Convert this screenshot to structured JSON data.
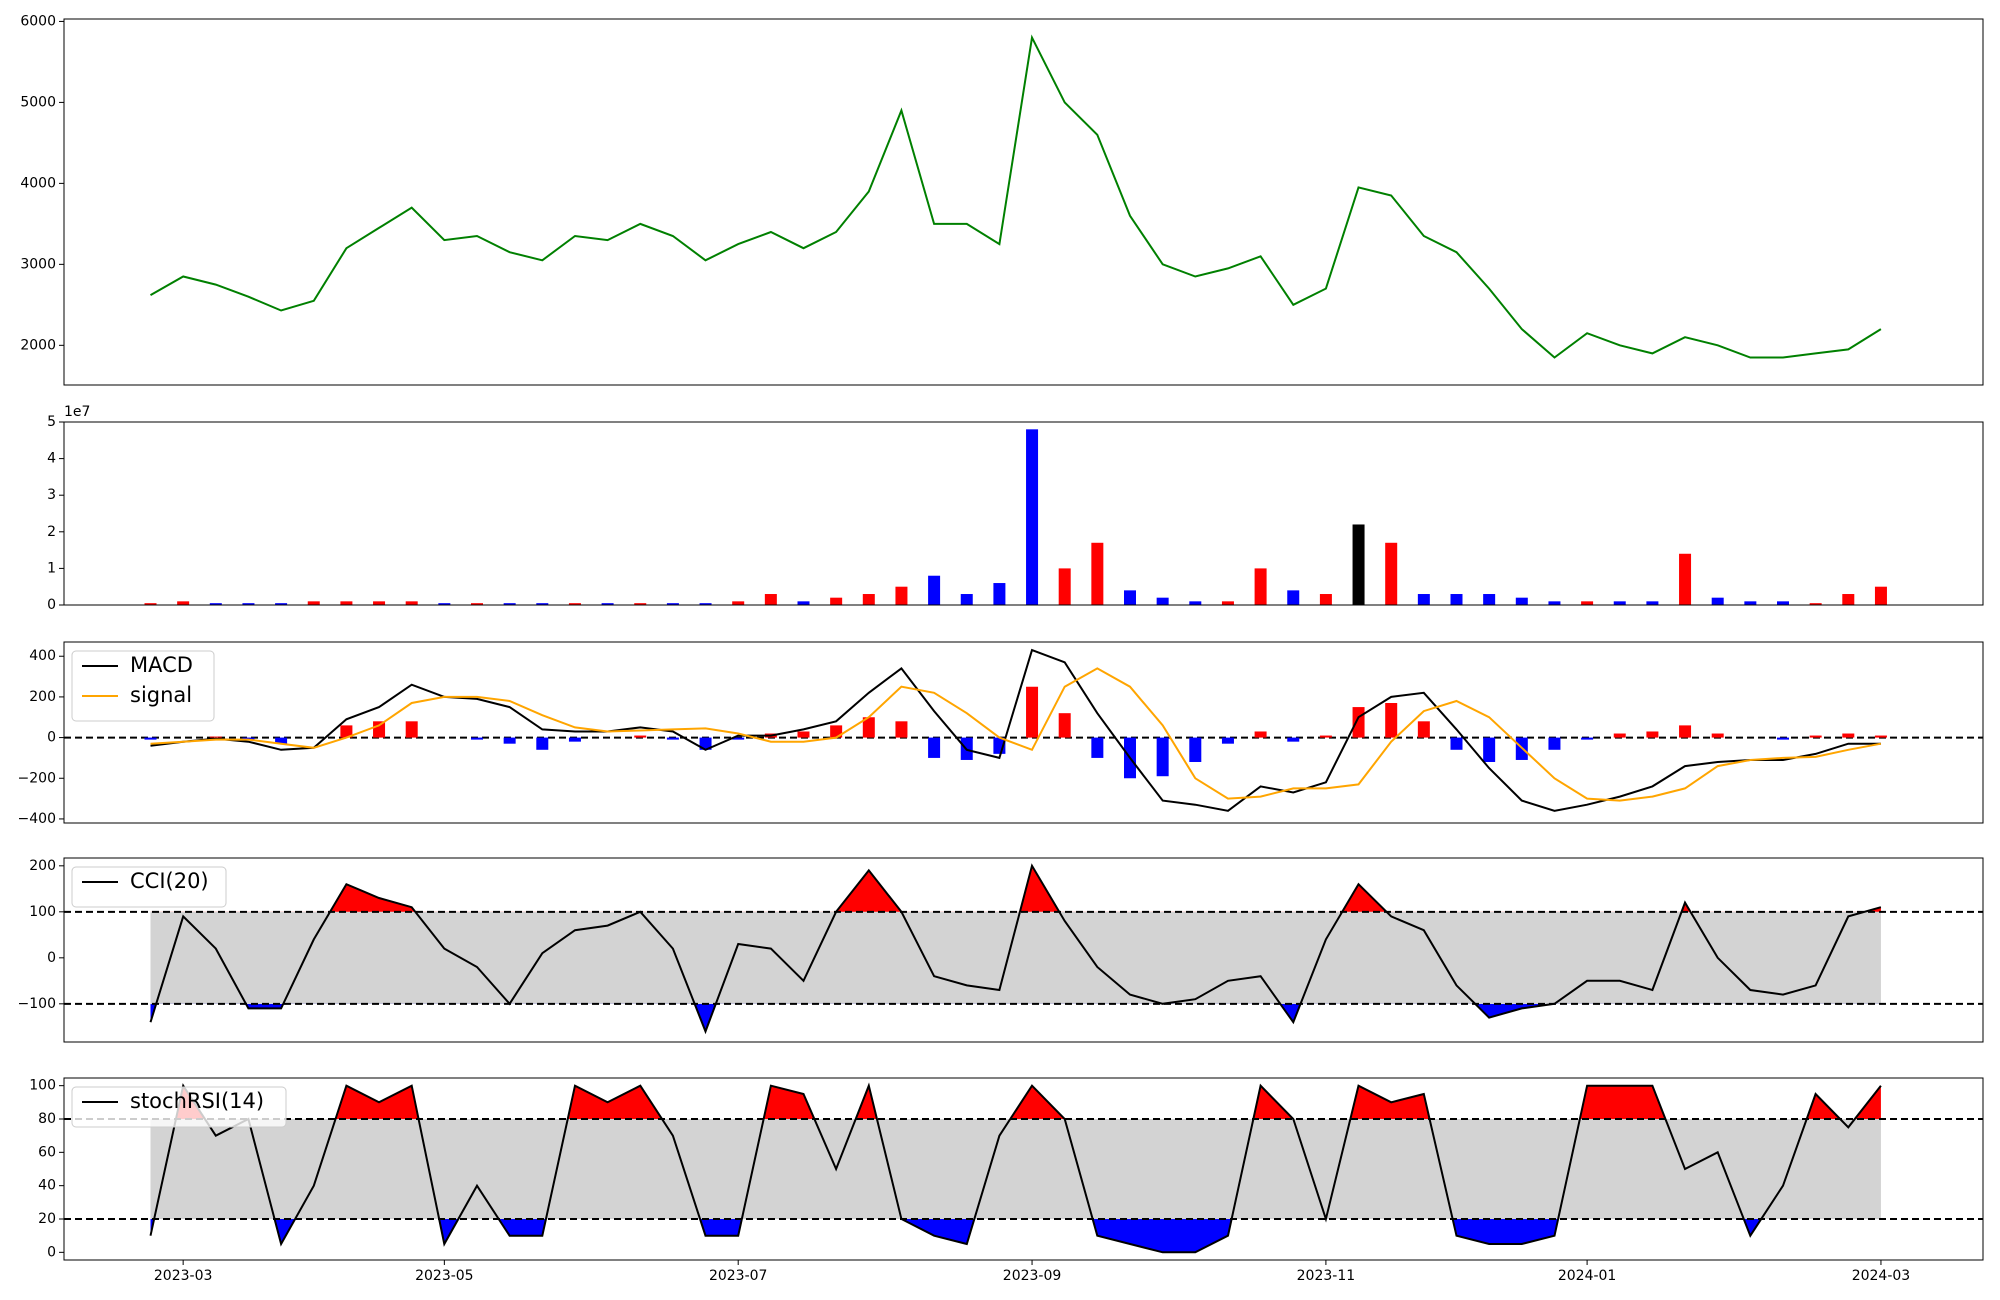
{
  "chart_data": [
    {
      "type": "line",
      "color": "green",
      "values": [
        2620,
        2850,
        2750,
        2600,
        2430,
        2550,
        3200,
        3450,
        3700,
        3300,
        3350,
        3150,
        3050,
        3350,
        3300,
        3500,
        3350,
        3050,
        3250,
        3400,
        3200,
        3400,
        3900,
        4900,
        3500,
        3500,
        3250,
        5800,
        5000,
        4600,
        3600,
        3000,
        2850,
        2950,
        3100,
        2500,
        2700,
        3950,
        3850,
        3350,
        3150,
        2700,
        2200,
        1850,
        2150,
        2000,
        1900,
        2100,
        2000,
        1850,
        1850,
        1900,
        1950,
        2200
      ],
      "ylim": [
        1510,
        6030
      ],
      "yticks": [
        2000,
        3000,
        4000,
        5000,
        6000
      ]
    },
    {
      "type": "bar",
      "offset_label": "1e7",
      "values": [
        0.05,
        0.1,
        0.05,
        0.05,
        0.05,
        0.1,
        0.1,
        0.1,
        0.1,
        0.05,
        0.05,
        0.05,
        0.05,
        0.05,
        0.05,
        0.05,
        0.05,
        0.05,
        0.1,
        0.3,
        0.1,
        0.2,
        0.3,
        0.5,
        0.8,
        0.3,
        0.6,
        4.8,
        1.0,
        1.7,
        0.4,
        0.2,
        0.1,
        0.1,
        1.0,
        0.4,
        0.3,
        2.2,
        1.7,
        0.3,
        0.3,
        0.3,
        0.2,
        0.1,
        0.1,
        0.1,
        0.1,
        1.4,
        0.2,
        0.1,
        0.1,
        0.05,
        0.3,
        0.5
      ],
      "colors": [
        "red",
        "red",
        "blue",
        "blue",
        "blue",
        "red",
        "red",
        "red",
        "red",
        "blue",
        "red",
        "blue",
        "blue",
        "red",
        "blue",
        "red",
        "blue",
        "blue",
        "red",
        "red",
        "blue",
        "red",
        "red",
        "red",
        "blue",
        "blue",
        "blue",
        "blue",
        "red",
        "red",
        "blue",
        "blue",
        "blue",
        "red",
        "red",
        "blue",
        "red",
        "black",
        "red",
        "blue",
        "blue",
        "blue",
        "blue",
        "blue",
        "red",
        "blue",
        "blue",
        "red",
        "blue",
        "blue",
        "blue",
        "red",
        "red",
        "red"
      ],
      "ylim": [
        0,
        5
      ],
      "yticks": [
        0,
        1,
        2,
        3,
        4,
        5
      ]
    },
    {
      "type": "macd",
      "legend": "upper left",
      "series": [
        {
          "name": "MACD",
          "color": "black",
          "values": [
            -40,
            -20,
            -5,
            -20,
            -60,
            -50,
            90,
            150,
            260,
            200,
            190,
            150,
            40,
            30,
            30,
            50,
            30,
            -60,
            10,
            10,
            40,
            80,
            220,
            340,
            130,
            -60,
            -100,
            430,
            370,
            120,
            -100,
            -310,
            -330,
            -360,
            -240,
            -270,
            -220,
            100,
            200,
            220,
            40,
            -150,
            -310,
            -360,
            -330,
            -290,
            -240,
            -140,
            -120,
            -110,
            -110,
            -80,
            -30,
            -30
          ]
        },
        {
          "name": "signal",
          "color": "orange",
          "values": [
            -30,
            -20,
            -10,
            -10,
            -30,
            -50,
            0,
            60,
            170,
            200,
            200,
            180,
            110,
            50,
            30,
            35,
            40,
            45,
            20,
            -20,
            -20,
            0,
            100,
            250,
            220,
            120,
            0,
            -60,
            250,
            340,
            250,
            60,
            -200,
            -300,
            -290,
            -250,
            -250,
            -230,
            -20,
            130,
            180,
            100,
            -50,
            -200,
            -300,
            -310,
            -290,
            -250,
            -140,
            -110,
            -100,
            -95,
            -60,
            -30
          ]
        }
      ],
      "histogram": {
        "up_color": "red",
        "down_color": "blue",
        "values": [
          -10,
          0,
          5,
          -10,
          -30,
          0,
          60,
          80,
          80,
          0,
          -10,
          -30,
          -60,
          -20,
          0,
          10,
          -10,
          -60,
          -10,
          20,
          30,
          60,
          100,
          80,
          -100,
          -110,
          -80,
          250,
          120,
          -100,
          -200,
          -190,
          -120,
          -30,
          30,
          -20,
          10,
          150,
          170,
          80,
          -60,
          -120,
          -110,
          -60,
          -10,
          20,
          30,
          60,
          20,
          0,
          -10,
          10,
          20,
          10
        ]
      },
      "hlines": [
        0
      ],
      "ylim": [
        -420,
        470
      ],
      "yticks": [
        {
          "value": -400,
          "label": "−400"
        },
        {
          "value": -200,
          "label": "−200"
        },
        0,
        200,
        400
      ]
    },
    {
      "type": "oscillator",
      "legend": "upper left",
      "upper_fill": "red",
      "lower_fill": "blue",
      "band_fill": "lightgray",
      "series": [
        {
          "name": "CCI(20)",
          "color": "black",
          "values": [
            -140,
            90,
            20,
            -110,
            -110,
            40,
            160,
            130,
            110,
            20,
            -20,
            -100,
            10,
            60,
            70,
            100,
            20,
            -160,
            30,
            20,
            -50,
            100,
            190,
            100,
            -40,
            -60,
            -70,
            200,
            80,
            -20,
            -80,
            -100,
            -90,
            -50,
            -40,
            -140,
            40,
            160,
            90,
            60,
            -60,
            -130,
            -110,
            -100,
            -50,
            -50,
            -70,
            120,
            0,
            -70,
            -80,
            -60,
            90,
            110
          ]
        }
      ],
      "hlines": [
        100,
        -100
      ],
      "ylim": [
        -183,
        217
      ],
      "yticks": [
        {
          "value": -100,
          "label": "−100"
        },
        0,
        100,
        200
      ]
    },
    {
      "type": "oscillator",
      "legend": "upper left",
      "upper_fill": "red",
      "lower_fill": "blue",
      "band_fill": "lightgray",
      "series": [
        {
          "name": "stochRSI(14)",
          "color": "black",
          "values": [
            10,
            100,
            70,
            80,
            5,
            40,
            100,
            90,
            100,
            5,
            40,
            10,
            10,
            100,
            90,
            100,
            70,
            10,
            10,
            100,
            95,
            50,
            100,
            20,
            10,
            5,
            70,
            100,
            80,
            10,
            5,
            0,
            0,
            10,
            100,
            80,
            20,
            100,
            90,
            95,
            10,
            5,
            5,
            10,
            100,
            100,
            100,
            50,
            60,
            10,
            40,
            95,
            75,
            100
          ]
        }
      ],
      "hlines": [
        80,
        20
      ],
      "ylim": [
        -4.6,
        104.6
      ],
      "yticks": [
        0,
        20,
        40,
        60,
        80,
        100
      ],
      "categories": [
        null,
        "2023-03",
        null,
        null,
        null,
        null,
        null,
        null,
        null,
        "2023-05",
        null,
        null,
        null,
        null,
        null,
        null,
        null,
        null,
        "2023-07",
        null,
        null,
        null,
        null,
        null,
        null,
        null,
        null,
        "2023-09",
        null,
        null,
        null,
        null,
        null,
        null,
        null,
        null,
        "2023-11",
        null,
        null,
        null,
        null,
        null,
        null,
        null,
        "2024-01",
        null,
        null,
        null,
        null,
        null,
        null,
        null,
        null,
        "2024-03"
      ]
    }
  ]
}
